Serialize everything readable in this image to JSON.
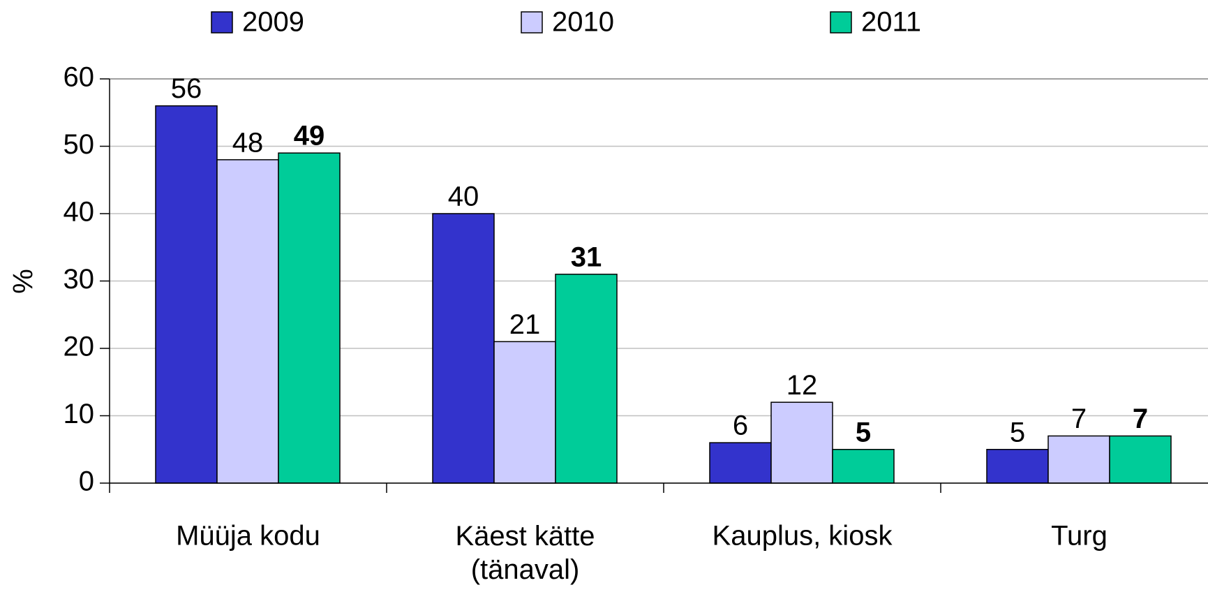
{
  "chart_data": {
    "type": "bar",
    "y_label": "%",
    "categories": [
      "Müüja kodu",
      "Käest kätte\n(tänaval)",
      "Kauplus, kiosk",
      "Turg"
    ],
    "series": [
      {
        "name": "2009",
        "color": "#3333cc",
        "values": [
          56,
          40,
          6,
          5
        ]
      },
      {
        "name": "2010",
        "color": "#ccccff",
        "values": [
          48,
          21,
          12,
          7
        ]
      },
      {
        "name": "2011",
        "color": "#00cc99",
        "values": [
          49,
          31,
          5,
          7
        ],
        "bold_labels": true
      }
    ],
    "ylim": [
      0,
      60
    ],
    "yticks": [
      0,
      10,
      20,
      30,
      40,
      50,
      60
    ],
    "grid": true,
    "legend": "top"
  }
}
